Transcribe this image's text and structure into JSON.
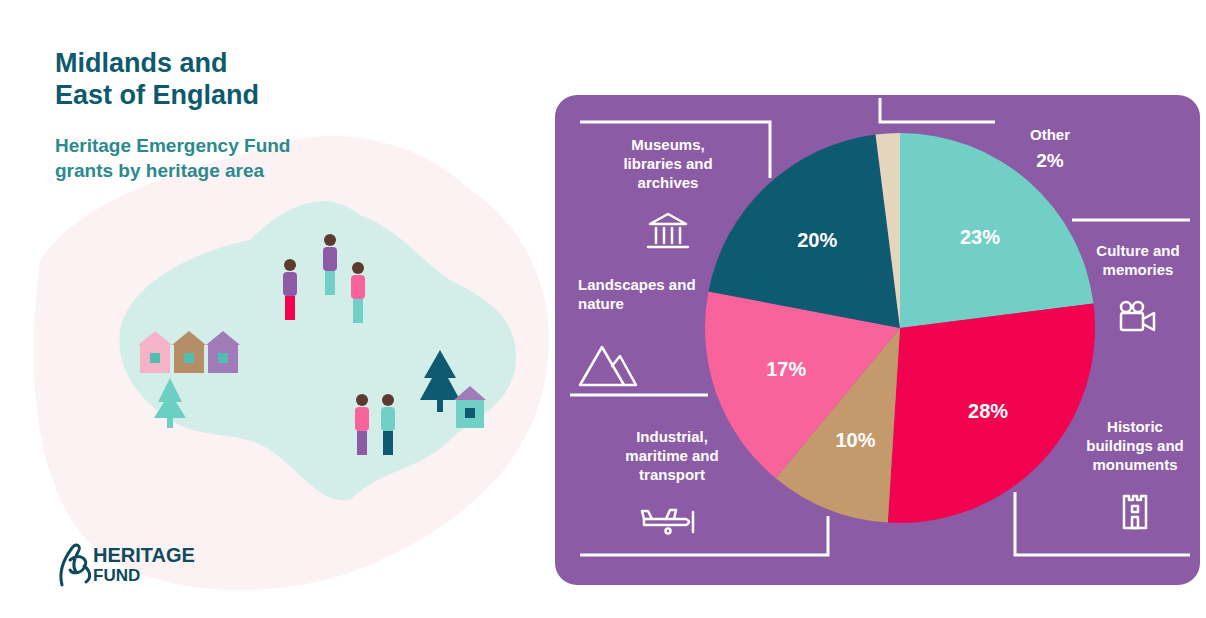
{
  "chart_data": {
    "type": "pie",
    "title": "Midlands and East of England",
    "subtitle": "Heritage Emergency Fund grants by heritage area",
    "categories": [
      "Culture and memories",
      "Historic buildings and monuments",
      "Industrial, maritime and transport",
      "Landscapes and nature",
      "Museums, libraries and archives",
      "Other"
    ],
    "values": [
      23,
      28,
      10,
      17,
      20,
      2
    ],
    "value_labels": [
      "23%",
      "28%",
      "10%",
      "17%",
      "20%",
      "2%"
    ],
    "colors": [
      "#72cfc6",
      "#f2034f",
      "#c49a6c",
      "#f7639a",
      "#0e5a71",
      "#e4d6bd"
    ],
    "data_labels": true,
    "annotations": [
      "HERITAGE",
      "FUND"
    ]
  }
}
